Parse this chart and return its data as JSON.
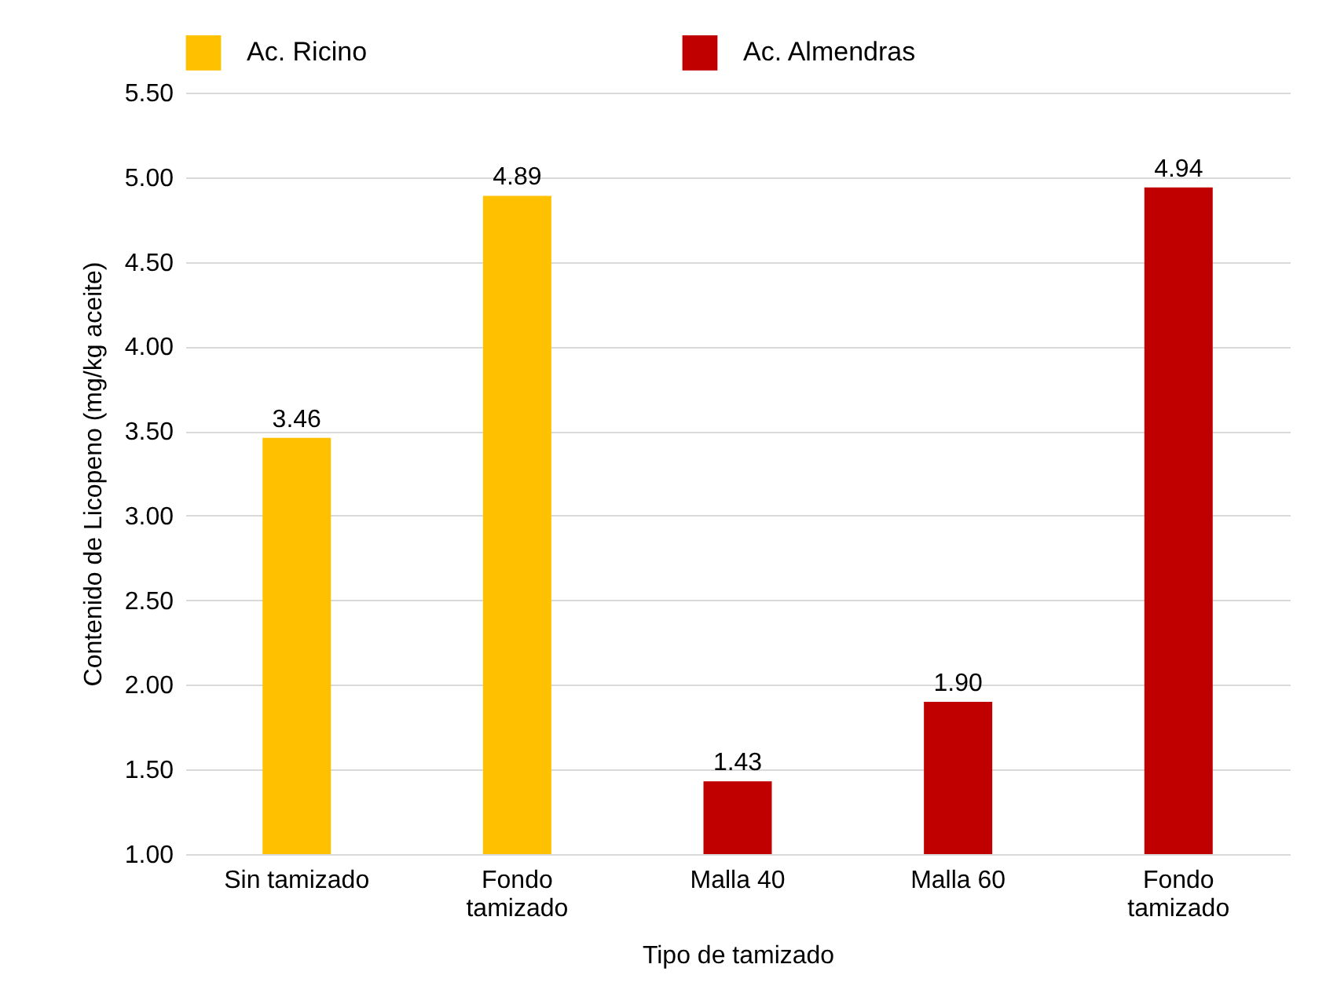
{
  "chart_data": {
    "type": "bar",
    "xlabel": "Tipo de tamizado",
    "ylabel": "Contenido de Licopeno (mg/kg aceite)",
    "categories": [
      "Sin tamizado",
      "Fondo tamizado",
      "Malla 40",
      "Malla 60",
      "Fondo tamizado"
    ],
    "series": [
      {
        "name": "Ac. Ricino",
        "color": "#ffc000",
        "values": [
          3.46,
          4.89,
          null,
          null,
          null
        ],
        "value_labels": [
          "3.46",
          "4.89",
          null,
          null,
          null
        ]
      },
      {
        "name": "Ac. Almendras",
        "color": "#c00000",
        "values": [
          null,
          null,
          1.43,
          1.9,
          4.94
        ],
        "value_labels": [
          null,
          null,
          "1.43",
          "1.90",
          "4.94"
        ]
      }
    ],
    "ylim": [
      1,
      5.5
    ],
    "yticks": [
      {
        "value": 1,
        "label": "1.00"
      },
      {
        "value": 1.5,
        "label": "1.50"
      },
      {
        "value": 2,
        "label": "2.00"
      },
      {
        "value": 2.5,
        "label": "2.50"
      },
      {
        "value": 3,
        "label": "3.00"
      },
      {
        "value": 3.5,
        "label": "3.50"
      },
      {
        "value": 4,
        "label": "4.00"
      },
      {
        "value": 4.5,
        "label": "4.50"
      },
      {
        "value": 5,
        "label": "5.00"
      },
      {
        "value": 5.5,
        "label": "5.50"
      }
    ],
    "grid": "y",
    "legend": "top"
  }
}
